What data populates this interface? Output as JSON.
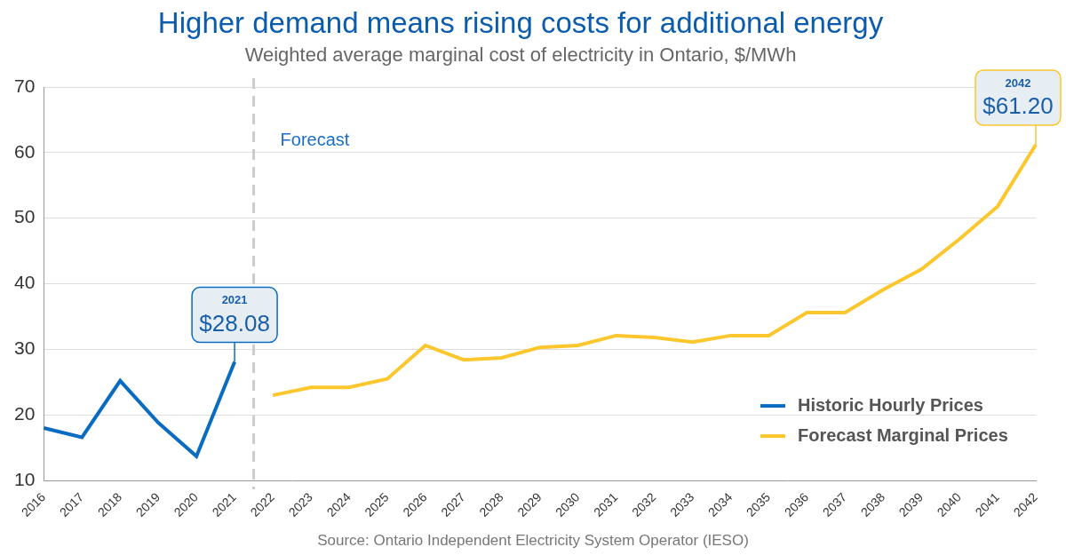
{
  "chart_data": {
    "type": "line",
    "title": "Higher demand means rising costs for additional energy",
    "subtitle": "Weighted average marginal cost of electricity in Ontario, $/MWh",
    "source": "Source: Ontario Independent Electricity System Operator (IESO)",
    "categories": [
      "2016",
      "2017",
      "2018",
      "2019",
      "2020",
      "2021",
      "2022",
      "2023",
      "2024",
      "2025",
      "2026",
      "2027",
      "2028",
      "2029",
      "2030",
      "2031",
      "2032",
      "2033",
      "2034",
      "2035",
      "2036",
      "2037",
      "2038",
      "2039",
      "2040",
      "2041",
      "2042"
    ],
    "series": [
      {
        "name": "Historic Hourly Prices",
        "color": "#0a6bc2",
        "values": [
          18.0,
          16.6,
          25.2,
          18.8,
          13.7,
          28.08,
          null,
          null,
          null,
          null,
          null,
          null,
          null,
          null,
          null,
          null,
          null,
          null,
          null,
          null,
          null,
          null,
          null,
          null,
          null,
          null,
          null
        ]
      },
      {
        "name": "Forecast Marginal Prices",
        "color": "#fcc62d",
        "values": [
          null,
          null,
          null,
          null,
          null,
          null,
          23.0,
          24.2,
          24.2,
          25.5,
          30.6,
          28.4,
          28.7,
          30.3,
          30.6,
          32.1,
          31.8,
          31.1,
          32.1,
          32.1,
          35.6,
          35.6,
          39.1,
          42.2,
          46.8,
          51.8,
          61.2
        ]
      }
    ],
    "ylim": [
      10,
      70
    ],
    "yticks": [
      10,
      20,
      30,
      40,
      50,
      60,
      70
    ],
    "grid": true,
    "legend": "lower right",
    "divider": {
      "category": "2022",
      "label": "Forecast"
    },
    "annotations": [
      {
        "category": "2021",
        "title": "2021",
        "value": 28.08,
        "label": "$28.08"
      },
      {
        "category": "2042",
        "title": "2042",
        "value": 61.2,
        "label": "$61.20"
      }
    ]
  }
}
